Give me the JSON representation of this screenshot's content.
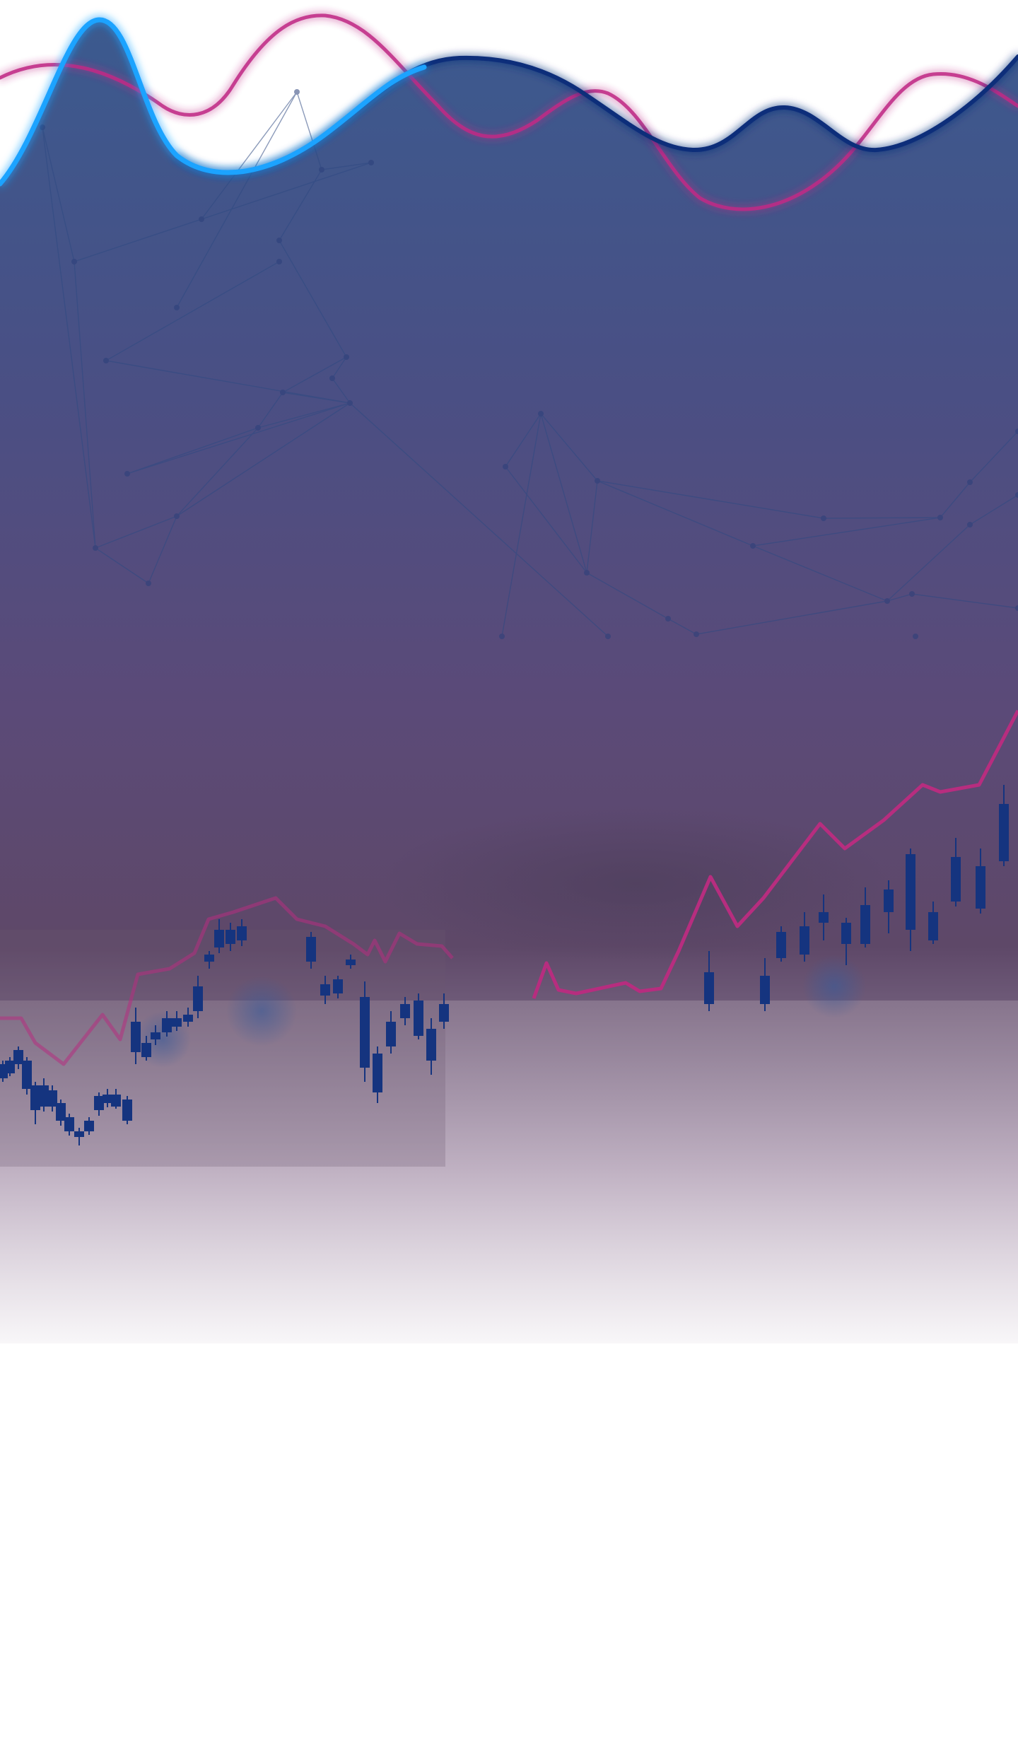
{
  "scene": {
    "description_free": true,
    "colors": {
      "top": "#3b5a8f",
      "mid": "#5a4a7a",
      "haze": "#86708e",
      "fade": "#ffffff",
      "wave_blue": "#1aa3ff",
      "wave_navy": "#0c2f7a",
      "wave_magenta": "#c02c86",
      "candle": "#15347f",
      "line_pink": "#b72d7f",
      "network_line": "#2f4a82",
      "network_node": "#2a3f7a"
    },
    "icons": [
      "candlestick-chart-icon",
      "network-graph-icon"
    ]
  }
}
